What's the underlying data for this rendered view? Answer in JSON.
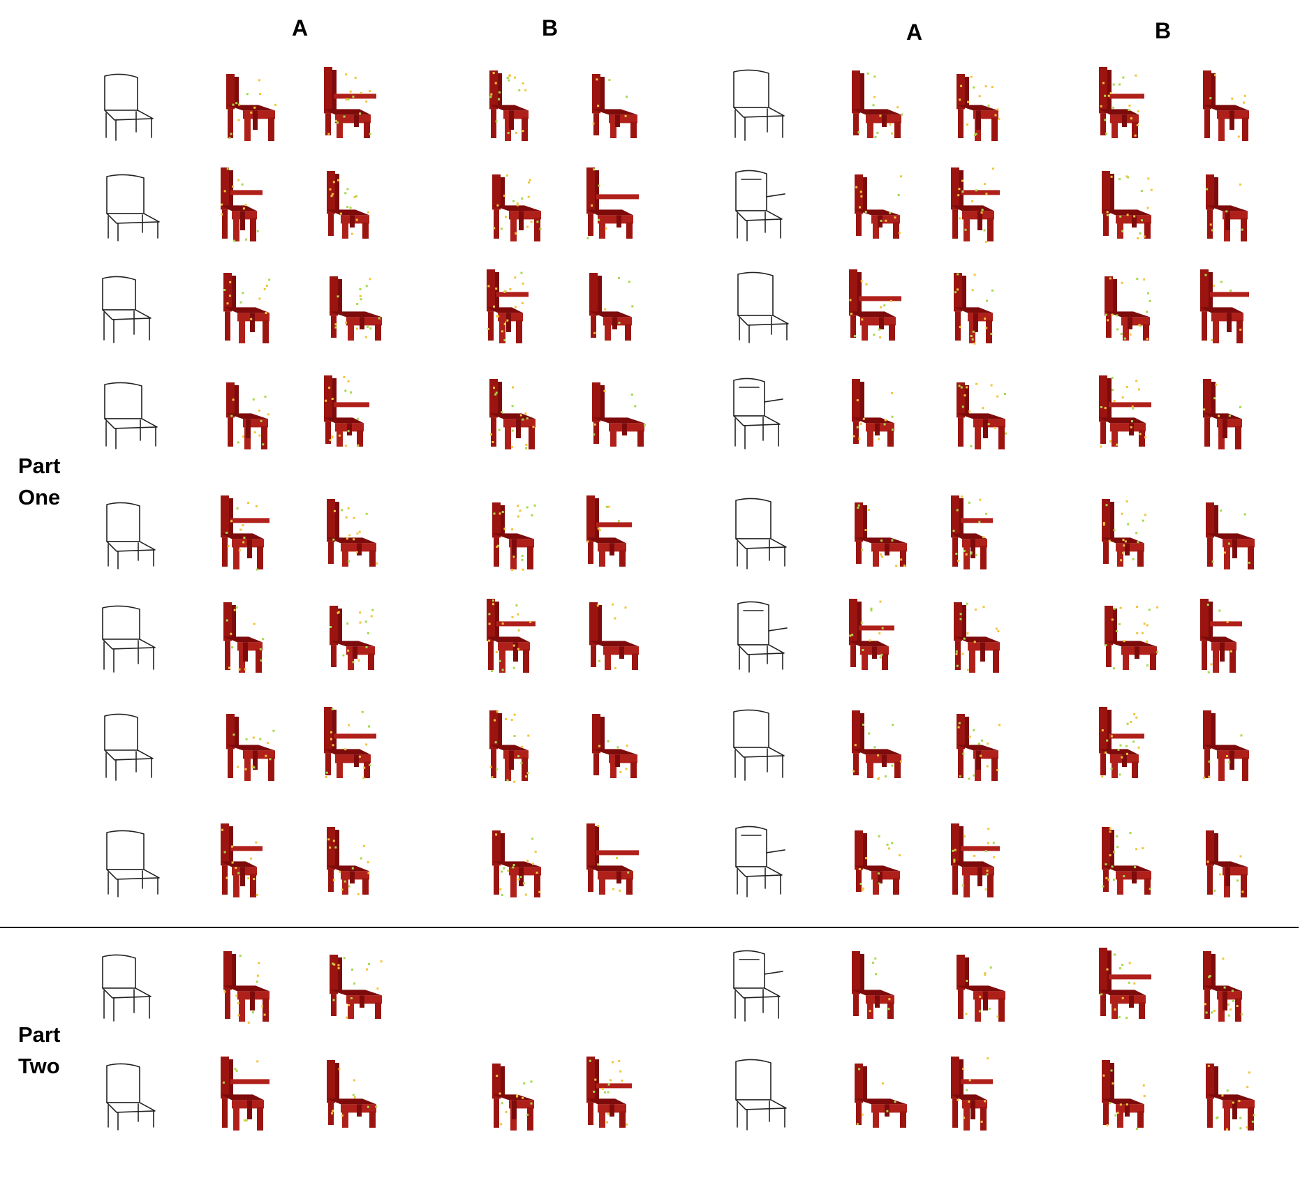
{
  "figure": {
    "column_headers": [
      "A",
      "B",
      "A",
      "B"
    ],
    "part_labels": {
      "part_one": [
        "Part",
        "One"
      ],
      "part_two": [
        "Part",
        "Two"
      ]
    },
    "colors": {
      "voxel_dark": "#7d0b0b",
      "voxel_mid": "#9b1410",
      "voxel_light": "#b0201a",
      "speckle_yellow": "#f2c53a",
      "speckle_green": "#a6d94a",
      "sketch_stroke": "#222222",
      "divider": "#000000"
    }
  }
}
